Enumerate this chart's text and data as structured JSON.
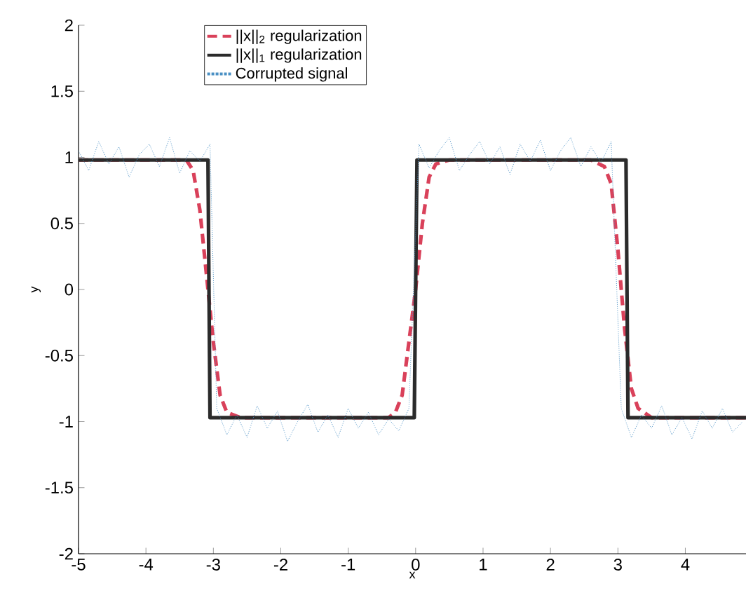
{
  "chart_data": {
    "type": "line",
    "xlabel": "x",
    "ylabel": "y",
    "xlim": [
      -5,
      4.9
    ],
    "ylim": [
      -2,
      2
    ],
    "xticks": [
      -5,
      -4,
      -3,
      -2,
      -1,
      0,
      1,
      2,
      3,
      4
    ],
    "yticks": [
      -2,
      -1.5,
      -1,
      -0.5,
      0,
      0.5,
      1,
      1.5,
      2
    ],
    "legend": "top",
    "grid": false,
    "marker": "none",
    "series": [
      {
        "name": "||x||$_{2}$ regularization",
        "color": "#d9415a",
        "line_style": "dashed",
        "x": [
          -5,
          -3.4,
          -3.3,
          -3.2,
          -3.1,
          -3.0,
          -2.9,
          -2.8,
          -2.6,
          -0.4,
          -0.3,
          -0.2,
          -0.1,
          0,
          0.1,
          0.2,
          0.3,
          0.5,
          2.6,
          2.8,
          2.9,
          3.0,
          3.1,
          3.2,
          3.3,
          3.5,
          4.9
        ],
        "values": [
          0.98,
          0.98,
          0.9,
          0.6,
          0.1,
          -0.4,
          -0.8,
          -0.93,
          -0.97,
          -0.97,
          -0.93,
          -0.8,
          -0.4,
          0,
          0.5,
          0.85,
          0.95,
          0.98,
          0.98,
          0.93,
          0.8,
          0.3,
          -0.3,
          -0.75,
          -0.9,
          -0.97,
          -0.97
        ]
      },
      {
        "name": "||x||$_{1}$ regularization",
        "color": "#2b2b2b",
        "line_style": "solid",
        "x": [
          -5,
          -3.08,
          -3.05,
          -0.02,
          0.02,
          3.12,
          3.15,
          4.9
        ],
        "values": [
          0.98,
          0.98,
          -0.97,
          -0.97,
          0.98,
          0.98,
          -0.97,
          -0.97
        ]
      },
      {
        "name": "Corrupted signal",
        "color": "#4a90c4",
        "line_style": "dotted",
        "x": [
          -5,
          -4.85,
          -4.7,
          -4.55,
          -4.4,
          -4.25,
          -4.1,
          -3.95,
          -3.8,
          -3.65,
          -3.5,
          -3.35,
          -3.2,
          -3.05,
          -2.95,
          -2.8,
          -2.65,
          -2.5,
          -2.35,
          -2.2,
          -2.05,
          -1.9,
          -1.75,
          -1.6,
          -1.45,
          -1.3,
          -1.15,
          -1.0,
          -0.85,
          -0.7,
          -0.55,
          -0.4,
          -0.25,
          -0.1,
          0.05,
          0.2,
          0.35,
          0.5,
          0.65,
          0.8,
          0.95,
          1.1,
          1.25,
          1.4,
          1.55,
          1.7,
          1.85,
          2.0,
          2.15,
          2.3,
          2.45,
          2.6,
          2.75,
          2.9,
          3.05,
          3.2,
          3.35,
          3.5,
          3.65,
          3.8,
          3.95,
          4.1,
          4.25,
          4.4,
          4.55,
          4.7,
          4.85
        ],
        "values": [
          1.05,
          0.9,
          1.12,
          0.95,
          1.08,
          0.85,
          1.02,
          1.1,
          0.93,
          1.15,
          0.88,
          1.05,
          0.97,
          1.1,
          -0.9,
          -1.1,
          -0.95,
          -1.12,
          -0.88,
          -1.05,
          -0.92,
          -1.15,
          -1.0,
          -0.87,
          -1.08,
          -0.95,
          -1.12,
          -0.9,
          -1.05,
          -0.93,
          -1.1,
          -0.98,
          -1.07,
          -0.9,
          1.1,
          0.92,
          1.05,
          1.15,
          0.9,
          1.02,
          1.12,
          0.95,
          1.08,
          0.87,
          1.1,
          0.97,
          1.13,
          0.9,
          1.05,
          1.15,
          0.93,
          1.08,
          0.96,
          1.12,
          -0.9,
          -1.12,
          -0.95,
          -1.05,
          -0.88,
          -1.1,
          -0.97,
          -1.13,
          -0.92,
          -1.05,
          -0.9,
          -1.08,
          -1.0
        ]
      }
    ]
  }
}
